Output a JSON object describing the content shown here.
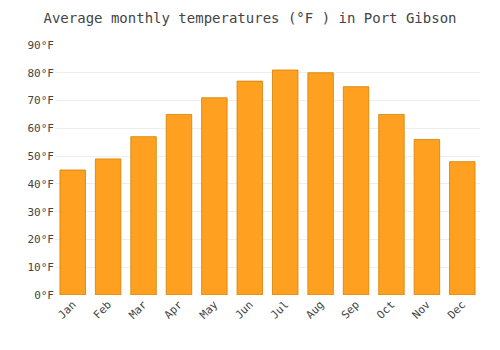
{
  "chart_data": {
    "type": "bar",
    "title": "Average monthly temperatures (°F ) in Port Gibson",
    "categories": [
      "Jan",
      "Feb",
      "Mar",
      "Apr",
      "May",
      "Jun",
      "Jul",
      "Aug",
      "Sep",
      "Oct",
      "Nov",
      "Dec"
    ],
    "values": [
      45,
      49,
      57,
      65,
      71,
      77,
      81,
      80,
      75,
      65,
      56,
      48
    ],
    "color": "#FFA020",
    "ylim": [
      0,
      90
    ],
    "yticks": [
      {
        "value": 0,
        "label": "0°F"
      },
      {
        "value": 10,
        "label": "10°F"
      },
      {
        "value": 20,
        "label": "20°F"
      },
      {
        "value": 30,
        "label": "30°F"
      },
      {
        "value": 40,
        "label": "40°F"
      },
      {
        "value": 50,
        "label": "50°F"
      },
      {
        "value": 60,
        "label": "60°F"
      },
      {
        "value": 70,
        "label": "70°F"
      },
      {
        "value": 80,
        "label": "80°F"
      },
      {
        "value": 90,
        "label": "90°F"
      }
    ],
    "grid": true
  }
}
